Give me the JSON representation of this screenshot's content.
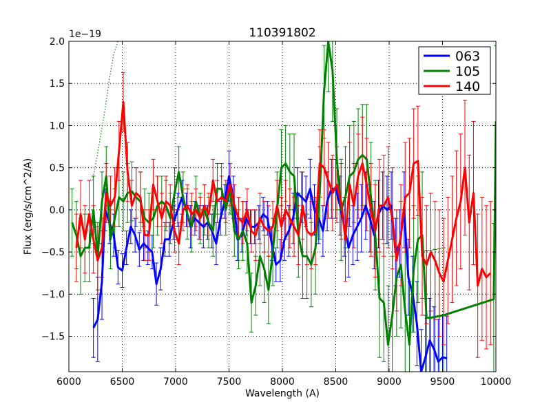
{
  "chart_data": {
    "type": "line",
    "title": "110391802",
    "xlabel": "Wavelength (A)",
    "ylabel": "Flux (erg/s/cm^2/A)",
    "offset_label": "1e−19",
    "xlim": [
      6000,
      10000
    ],
    "ylim": [
      -1.92,
      2.0
    ],
    "x_ticks": [
      6000,
      6500,
      7000,
      7500,
      8000,
      8500,
      9000,
      9500,
      10000
    ],
    "y_ticks": [
      -1.5,
      -1.0,
      -0.5,
      0.0,
      0.5,
      1.0,
      1.5,
      2.0
    ],
    "x_tick_labels": [
      "6000",
      "6500",
      "7000",
      "7500",
      "8000",
      "8500",
      "9000",
      "9500",
      "10000"
    ],
    "y_tick_labels": [
      "−1.5",
      "−1.0",
      "−0.5",
      "0.0",
      "0.5",
      "1.0",
      "1.5",
      "2.0"
    ],
    "grid": true,
    "legend_position": "top-right",
    "series": [
      {
        "name": "063",
        "color": "#0000ff",
        "x": [
          6230,
          6270,
          6310,
          6340,
          6380,
          6420,
          6460,
          6500,
          6540,
          6580,
          6620,
          6660,
          6700,
          6740,
          6780,
          6820,
          6860,
          6900,
          6940,
          6980,
          7020,
          7060,
          7100,
          7140,
          7180,
          7220,
          7260,
          7300,
          7340,
          7380,
          7420,
          7460,
          7500,
          7540,
          7580,
          7620,
          7660,
          7700,
          7740,
          7780,
          7820,
          7860,
          7900,
          7940,
          7980,
          8020,
          8060,
          8100,
          8140,
          8180,
          8220,
          8260,
          8300,
          8340,
          8380,
          8420,
          8460,
          8500,
          8540,
          8580,
          8620,
          8660,
          8700,
          8740,
          8780,
          8820,
          8860,
          8900,
          8940,
          8980,
          9020,
          9060,
          9100,
          9140,
          9180,
          9220,
          9260,
          9300,
          9340,
          9380,
          9420,
          9460,
          9500,
          9540
        ],
        "y": [
          -1.4,
          -1.3,
          -0.85,
          0.0,
          -0.15,
          -0.3,
          -0.68,
          -0.72,
          -0.45,
          -0.2,
          -0.3,
          -0.47,
          -0.4,
          -0.45,
          -0.5,
          -0.88,
          -0.7,
          -0.35,
          -0.35,
          -0.15,
          0.0,
          0.15,
          0.0,
          -0.2,
          -0.1,
          -0.15,
          -0.2,
          -0.15,
          -0.25,
          -0.4,
          -0.1,
          0.1,
          0.4,
          0.15,
          -0.35,
          -0.3,
          -0.1,
          -0.2,
          -0.2,
          -0.15,
          -0.05,
          -0.1,
          -0.4,
          -0.65,
          -0.6,
          -0.35,
          -0.25,
          -0.1,
          0.2,
          0.15,
          0.1,
          0.25,
          0.0,
          -0.1,
          -0.25,
          0.1,
          0.25,
          0.25,
          0.05,
          -0.2,
          -0.45,
          -0.3,
          -0.2,
          -0.1,
          0.05,
          -0.1,
          -0.3,
          -0.05,
          0.05,
          0.0,
          0.05,
          -0.5,
          -0.4,
          0.0,
          -0.8,
          -1.0,
          -1.35,
          -1.92,
          -1.75,
          -1.55,
          -1.65,
          -1.8,
          -1.75,
          -1.76
        ],
        "err": [
          0.35,
          0.5,
          0.45,
          0.25,
          0.25,
          0.25,
          0.2,
          0.2,
          0.2,
          0.2,
          0.2,
          0.2,
          0.2,
          0.2,
          0.2,
          0.25,
          0.25,
          0.2,
          0.2,
          0.2,
          0.2,
          0.2,
          0.2,
          0.25,
          0.2,
          0.2,
          0.25,
          0.2,
          0.2,
          0.25,
          0.2,
          0.2,
          0.3,
          0.25,
          0.25,
          0.2,
          0.2,
          0.2,
          0.2,
          0.2,
          0.2,
          0.2,
          0.2,
          0.2,
          0.25,
          0.25,
          0.3,
          0.3,
          0.3,
          0.3,
          0.3,
          0.35,
          0.3,
          0.3,
          0.3,
          0.35,
          0.35,
          0.35,
          0.35,
          0.35,
          0.35,
          0.35,
          0.4,
          0.4,
          0.4,
          0.4,
          0.4,
          0.4,
          0.4,
          0.4,
          0.4,
          0.4,
          0.4,
          0.45,
          0.45,
          0.45,
          0.5,
          0.5,
          0.5,
          0.5,
          0.5,
          0.5,
          0.5,
          0.5
        ]
      },
      {
        "name": "105",
        "color": "#008000",
        "x": [
          6030,
          6070,
          6110,
          6150,
          6190,
          6230,
          6270,
          6310,
          6350,
          6390,
          6430,
          6470,
          6510,
          6550,
          6590,
          6630,
          6670,
          6710,
          6750,
          6790,
          6830,
          6870,
          6910,
          6950,
          6990,
          7030,
          7070,
          7110,
          7150,
          7190,
          7230,
          7270,
          7310,
          7350,
          7390,
          7430,
          7470,
          7510,
          7550,
          7590,
          7630,
          7670,
          7710,
          7750,
          7790,
          7830,
          7870,
          7910,
          7950,
          7990,
          8030,
          8070,
          8110,
          8150,
          8190,
          8230,
          8270,
          8310,
          8350,
          8390,
          8430,
          8470,
          8510,
          8550,
          8590,
          8630,
          8670,
          8710,
          8750,
          8790,
          8830,
          8870,
          8910,
          8950,
          8990,
          9030,
          9070,
          9110,
          9150,
          9190,
          9230,
          9270,
          9310,
          9350,
          9390,
          9430,
          9470,
          9510,
          9980,
          10000
        ],
        "y": [
          -0.15,
          -0.3,
          -0.55,
          -0.45,
          -0.45,
          0.0,
          -0.55,
          0.1,
          0.4,
          -0.35,
          -0.1,
          0.15,
          0.1,
          0.2,
          0.22,
          0.15,
          0.1,
          -0.1,
          -0.15,
          -0.1,
          0.05,
          0.1,
          0.05,
          -0.1,
          0.2,
          0.45,
          0.15,
          -0.05,
          -0.2,
          0.1,
          -0.1,
          0.0,
          -0.15,
          -0.25,
          0.25,
          0.25,
          0.0,
          0.25,
          -0.25,
          -0.35,
          -0.25,
          -0.4,
          -1.1,
          -0.9,
          -0.55,
          -0.7,
          -0.95,
          -0.5,
          0.0,
          0.5,
          0.55,
          0.45,
          0.4,
          -0.3,
          -0.55,
          -0.55,
          -0.65,
          -0.45,
          0.2,
          1.4,
          2.0,
          1.65,
          0.6,
          0.0,
          0.15,
          0.4,
          0.45,
          0.6,
          0.65,
          0.6,
          0.15,
          -0.3,
          -1.05,
          -1.1,
          -1.6,
          -1.25,
          -0.8,
          -0.65,
          -1.2,
          -1.6,
          -0.7,
          -0.35,
          -0.3,
          -1.28,
          -1.28,
          -1.27,
          -1.26,
          -1.25,
          -1.06,
          1.05
        ],
        "err": [
          0.4,
          0.4,
          0.45,
          0.4,
          0.4,
          0.4,
          0.4,
          0.35,
          0.35,
          0.35,
          0.35,
          0.35,
          0.35,
          0.35,
          0.35,
          0.35,
          0.35,
          0.35,
          0.35,
          0.35,
          0.35,
          0.3,
          0.3,
          0.3,
          0.3,
          0.3,
          0.3,
          0.3,
          0.3,
          0.3,
          0.3,
          0.3,
          0.3,
          0.3,
          0.3,
          0.3,
          0.3,
          0.3,
          0.3,
          0.35,
          0.35,
          0.35,
          0.35,
          0.35,
          0.35,
          0.4,
          0.4,
          0.4,
          0.45,
          0.45,
          0.45,
          0.45,
          0.5,
          0.5,
          0.5,
          0.5,
          0.5,
          0.55,
          0.55,
          0.55,
          0.6,
          0.6,
          0.6,
          0.6,
          0.6,
          0.6,
          0.6,
          0.6,
          0.6,
          0.65,
          0.65,
          0.65,
          0.7,
          0.7,
          0.7,
          0.7,
          0.7,
          0.75,
          0.75,
          0.75,
          0.75,
          0.75,
          0.75,
          0.8,
          0.8,
          0.8,
          0.8,
          0.8,
          0.9,
          0.9
        ]
      },
      {
        "name": "140",
        "color": "#ff0000",
        "x": [
          6070,
          6110,
          6150,
          6190,
          6230,
          6270,
          6310,
          6350,
          6390,
          6430,
          6470,
          6510,
          6550,
          6590,
          6630,
          6670,
          6710,
          6750,
          6790,
          6830,
          6870,
          6910,
          6950,
          6990,
          7030,
          7070,
          7110,
          7150,
          7190,
          7230,
          7270,
          7310,
          7350,
          7390,
          7430,
          7470,
          7510,
          7550,
          7590,
          7630,
          7670,
          7710,
          7750,
          7790,
          7830,
          7870,
          7910,
          7950,
          7990,
          8030,
          8070,
          8110,
          8150,
          8190,
          8230,
          8270,
          8310,
          8350,
          8390,
          8430,
          8470,
          8510,
          8550,
          8590,
          8630,
          8670,
          8710,
          8750,
          8790,
          8830,
          8870,
          8910,
          8950,
          8990,
          9030,
          9070,
          9110,
          9150,
          9190,
          9230,
          9270,
          9310,
          9350,
          9390,
          9430,
          9470,
          9510,
          9550,
          9590,
          9630,
          9670,
          9710,
          9750,
          9790,
          9830,
          9870,
          9910,
          9950
        ],
        "y": [
          -0.45,
          -0.05,
          -0.35,
          -0.05,
          -0.35,
          -0.6,
          -0.45,
          0.2,
          0.05,
          0.15,
          0.7,
          1.28,
          0.45,
          0.05,
          0.2,
          0.15,
          -0.3,
          -0.3,
          0.3,
          0.1,
          -0.1,
          0.1,
          0.05,
          -0.25,
          -0.4,
          0.0,
          0.05,
          -0.05,
          0.0,
          -0.1,
          0.05,
          -0.05,
          0.35,
          0.1,
          0.15,
          0.1,
          0.3,
          0.05,
          -0.1,
          -0.15,
          0.0,
          -0.25,
          -0.3,
          -0.1,
          -0.2,
          -0.25,
          -0.2,
          0.05,
          -0.2,
          0.0,
          -0.1,
          -0.2,
          -0.3,
          0.05,
          -0.25,
          -0.3,
          -0.25,
          0.55,
          0.5,
          0.35,
          0.2,
          0.3,
          0.1,
          -0.35,
          0.3,
          0.05,
          0.4,
          0.55,
          0.3,
          0.0,
          -0.25,
          0.05,
          0.05,
          0.15,
          -0.1,
          -0.6,
          -0.3,
          0.15,
          0.2,
          0.55,
          0.58,
          -0.55,
          -0.65,
          -0.5,
          -0.6,
          -0.75,
          -0.85,
          -0.6,
          -0.35,
          -0.1,
          0.1,
          0.5,
          -0.15,
          0.2,
          -0.9,
          -0.7,
          -0.8,
          -0.75
        ],
        "err": [
          0.4,
          0.4,
          0.4,
          0.4,
          0.4,
          0.4,
          0.35,
          0.35,
          0.35,
          0.35,
          0.35,
          0.35,
          0.35,
          0.3,
          0.3,
          0.3,
          0.3,
          0.3,
          0.3,
          0.3,
          0.3,
          0.3,
          0.25,
          0.25,
          0.25,
          0.25,
          0.25,
          0.25,
          0.25,
          0.25,
          0.25,
          0.25,
          0.25,
          0.25,
          0.25,
          0.25,
          0.25,
          0.25,
          0.25,
          0.25,
          0.25,
          0.25,
          0.3,
          0.3,
          0.3,
          0.3,
          0.3,
          0.3,
          0.35,
          0.35,
          0.35,
          0.35,
          0.35,
          0.4,
          0.4,
          0.4,
          0.4,
          0.4,
          0.45,
          0.45,
          0.45,
          0.45,
          0.45,
          0.5,
          0.5,
          0.5,
          0.5,
          0.55,
          0.55,
          0.55,
          0.55,
          0.55,
          0.6,
          0.6,
          0.6,
          0.6,
          0.6,
          0.65,
          0.65,
          0.65,
          0.65,
          0.7,
          0.7,
          0.7,
          0.7,
          0.75,
          0.75,
          0.75,
          0.75,
          0.8,
          0.8,
          0.8,
          0.8,
          0.85,
          0.85,
          0.85,
          0.85,
          0.85
        ]
      }
    ],
    "dotted_curve": {
      "color": "#008000",
      "x": [
        6220,
        6260,
        6300,
        6340,
        6380,
        6420,
        6460
      ],
      "y": [
        0.35,
        0.6,
        0.9,
        1.2,
        1.55,
        1.85,
        2.0
      ]
    }
  }
}
